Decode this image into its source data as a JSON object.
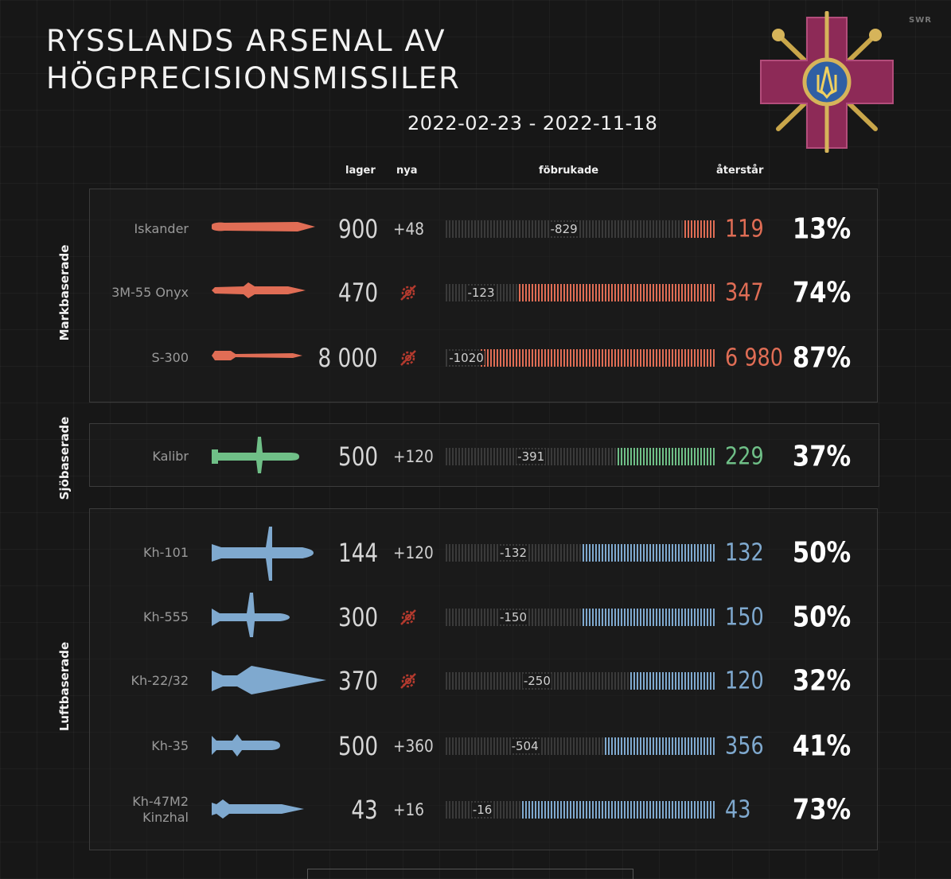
{
  "header": {
    "title_line1": "RYSSLANDS ARSENAL AV",
    "title_line2": "HÖGPRECISIONSMISSILER",
    "date_range": "2022-02-23 - 2022-11-18",
    "watermark": "SWR",
    "emblem_icon": "ukraine-defence-ministry-emblem"
  },
  "columns": {
    "stock": "lager",
    "new": "nya",
    "used": "föbrukade",
    "remaining": "återstår"
  },
  "groups": [
    {
      "key": "ground",
      "label": "Markbaserade",
      "color": "#e06d55"
    },
    {
      "key": "sea",
      "label": "Sjöbaserade",
      "color": "#6fbf87"
    },
    {
      "key": "air",
      "label": "Luftbaserade",
      "color": "#7fa9cf"
    }
  ],
  "no_new_icon": "crossed-gear-icon",
  "chart_data": {
    "type": "table",
    "rows": [
      {
        "group": "Markbaserade",
        "name": [
          "Iskander"
        ],
        "stock": "900",
        "new": "+48",
        "used": "-829",
        "remaining": "119",
        "percent": "13%",
        "used_value": 829,
        "remaining_value": 119
      },
      {
        "group": "Markbaserade",
        "name": [
          "3M-55 Onyx"
        ],
        "stock": "470",
        "new": "",
        "used": "-123",
        "remaining": "347",
        "percent": "74%",
        "used_value": 123,
        "remaining_value": 347
      },
      {
        "group": "Markbaserade",
        "name": [
          "S-300"
        ],
        "stock": "8 000",
        "new": "",
        "used": "-1020",
        "remaining": "6 980",
        "percent": "87%",
        "used_value": 1020,
        "remaining_value": 6980
      },
      {
        "group": "Sjöbaserade",
        "name": [
          "Kalibr"
        ],
        "stock": "500",
        "new": "+120",
        "used": "-391",
        "remaining": "229",
        "percent": "37%",
        "used_value": 391,
        "remaining_value": 229
      },
      {
        "group": "Luftbaserade",
        "name": [
          "Kh-101"
        ],
        "stock": "144",
        "new": "+120",
        "used": "-132",
        "remaining": "132",
        "percent": "50%",
        "used_value": 132,
        "remaining_value": 132
      },
      {
        "group": "Luftbaserade",
        "name": [
          "Kh-555"
        ],
        "stock": "300",
        "new": "",
        "used": "-150",
        "remaining": "150",
        "percent": "50%",
        "used_value": 150,
        "remaining_value": 150
      },
      {
        "group": "Luftbaserade",
        "name": [
          "Kh-22/32"
        ],
        "stock": "370",
        "new": "",
        "used": "-250",
        "remaining": "120",
        "percent": "32%",
        "used_value": 250,
        "remaining_value": 120
      },
      {
        "group": "Luftbaserade",
        "name": [
          "Kh-35"
        ],
        "stock": "500",
        "new": "+360",
        "used": "-504",
        "remaining": "356",
        "percent": "41%",
        "used_value": 504,
        "remaining_value": 356
      },
      {
        "group": "Luftbaserade",
        "name": [
          "Kh-47M2",
          "Kinzhal"
        ],
        "stock": "43",
        "new": "+16",
        "used": "-16",
        "remaining": "43",
        "percent": "73%",
        "used_value": 16,
        "remaining_value": 43
      }
    ]
  }
}
